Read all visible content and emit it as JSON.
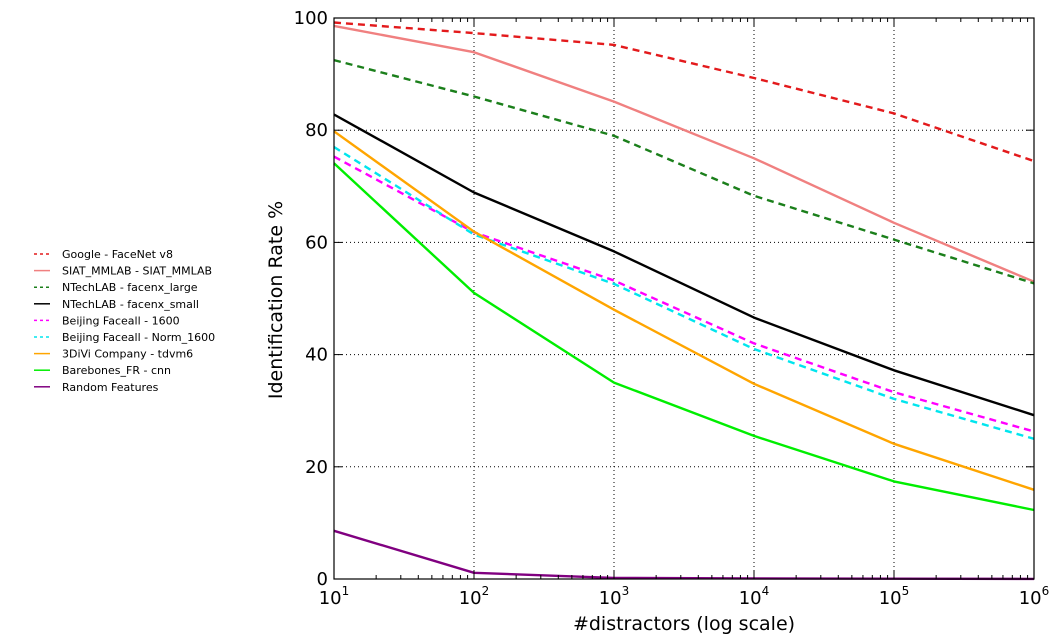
{
  "chart_data": {
    "type": "line",
    "title": "",
    "xlabel": "#distractors (log scale)",
    "ylabel": "Identification Rate %",
    "x_scale": "log",
    "x": [
      10,
      100,
      1000,
      10000,
      100000,
      1000000
    ],
    "x_tick_labels": [
      {
        "base": "10",
        "exp": "1"
      },
      {
        "base": "10",
        "exp": "2"
      },
      {
        "base": "10",
        "exp": "3"
      },
      {
        "base": "10",
        "exp": "4"
      },
      {
        "base": "10",
        "exp": "5"
      },
      {
        "base": "10",
        "exp": "6"
      }
    ],
    "xlim": [
      10,
      1000000
    ],
    "ylim": [
      0,
      100
    ],
    "y_ticks": [
      0,
      20,
      40,
      60,
      80,
      100
    ],
    "grid": true,
    "legend_position": "left, outside plot",
    "series": [
      {
        "name": "Google - FaceNet v8",
        "color": "#e31a1c",
        "dash": true,
        "values": [
          99.2,
          97.3,
          95.2,
          89.3,
          83.0,
          74.5
        ]
      },
      {
        "name": "SIAT_MMLAB - SIAT_MMLAB",
        "color": "#f08080",
        "dash": false,
        "values": [
          98.6,
          93.9,
          85.1,
          75.0,
          63.5,
          53.0
        ]
      },
      {
        "name": "NTechLAB - facenx_large",
        "color": "#1b7f1b",
        "dash": true,
        "values": [
          92.5,
          86.0,
          79.0,
          68.3,
          60.5,
          52.7
        ]
      },
      {
        "name": "NTechLAB - facenx_small",
        "color": "#000000",
        "dash": false,
        "values": [
          82.8,
          68.9,
          58.4,
          46.6,
          37.2,
          29.2
        ]
      },
      {
        "name": "Beijing Faceall - 1600",
        "color": "#ff00ff",
        "dash": true,
        "values": [
          75.3,
          61.8,
          53.2,
          42.0,
          33.3,
          26.3
        ]
      },
      {
        "name": "Beijing Faceall - Norm_1600",
        "color": "#00e5ee",
        "dash": true,
        "values": [
          77.0,
          61.4,
          52.6,
          41.0,
          32.1,
          25.0
        ]
      },
      {
        "name": "3DiVi Company - tdvm6",
        "color": "#ffa500",
        "dash": false,
        "values": [
          79.8,
          61.9,
          48.0,
          34.8,
          24.1,
          15.9
        ]
      },
      {
        "name": "Barebones_FR - cnn",
        "color": "#00ee00",
        "dash": false,
        "values": [
          74.1,
          51.0,
          35.0,
          25.5,
          17.4,
          12.3
        ]
      },
      {
        "name": "Random Features",
        "color": "#800080",
        "dash": false,
        "values": [
          8.6,
          1.1,
          0.2,
          0.1,
          0.05,
          0.02
        ]
      }
    ]
  }
}
